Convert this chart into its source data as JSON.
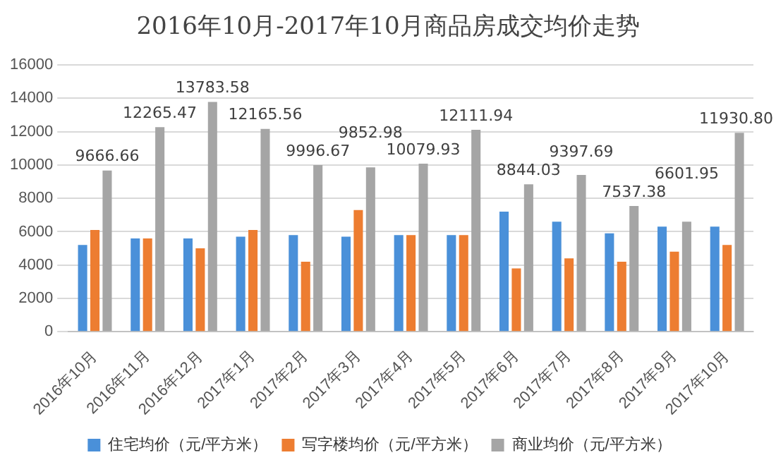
{
  "chart_data": {
    "type": "bar",
    "title": "2016年10月-2017年10月商品房成交均价走势",
    "categories": [
      "2016年10月",
      "2016年11月",
      "2016年12月",
      "2017年1月",
      "2017年2月",
      "2017年3月",
      "2017年4月",
      "2017年5月",
      "2017年6月",
      "2017年7月",
      "2017年8月",
      "2017年9月",
      "2017年10月"
    ],
    "series": [
      {
        "name": "住宅均价（元/平方米）",
        "color": "#4a90d9",
        "values": [
          5200,
          5600,
          5600,
          5700,
          5800,
          5700,
          5800,
          5800,
          7200,
          6600,
          5900,
          6300,
          6300
        ]
      },
      {
        "name": "写字楼均价（元/平方米）",
        "color": "#ed7d31",
        "values": [
          6100,
          5600,
          5000,
          6100,
          4200,
          7300,
          5800,
          5800,
          3800,
          4400,
          4200,
          4800,
          5200
        ]
      },
      {
        "name": "商业均价（元/平方米）",
        "color": "#a5a5a5",
        "values": [
          9666.66,
          12265.47,
          13783.58,
          12165.56,
          9996.67,
          9852.98,
          10079.93,
          12111.94,
          8844.03,
          9397.69,
          7537.38,
          6601.95,
          11930.8
        ],
        "value_labels": [
          "9666.66",
          "12265.47",
          "13783.58",
          "12165.56",
          "9996.67",
          "9852.98",
          "10079.93",
          "12111.94",
          "8844.03",
          "9397.69",
          "7537.38",
          "6601.95",
          "11930.80"
        ]
      }
    ],
    "ylim": [
      0,
      16000
    ],
    "yticks": [
      0,
      2000,
      4000,
      6000,
      8000,
      10000,
      12000,
      14000,
      16000
    ],
    "grid": "y",
    "legend": "bottom"
  }
}
